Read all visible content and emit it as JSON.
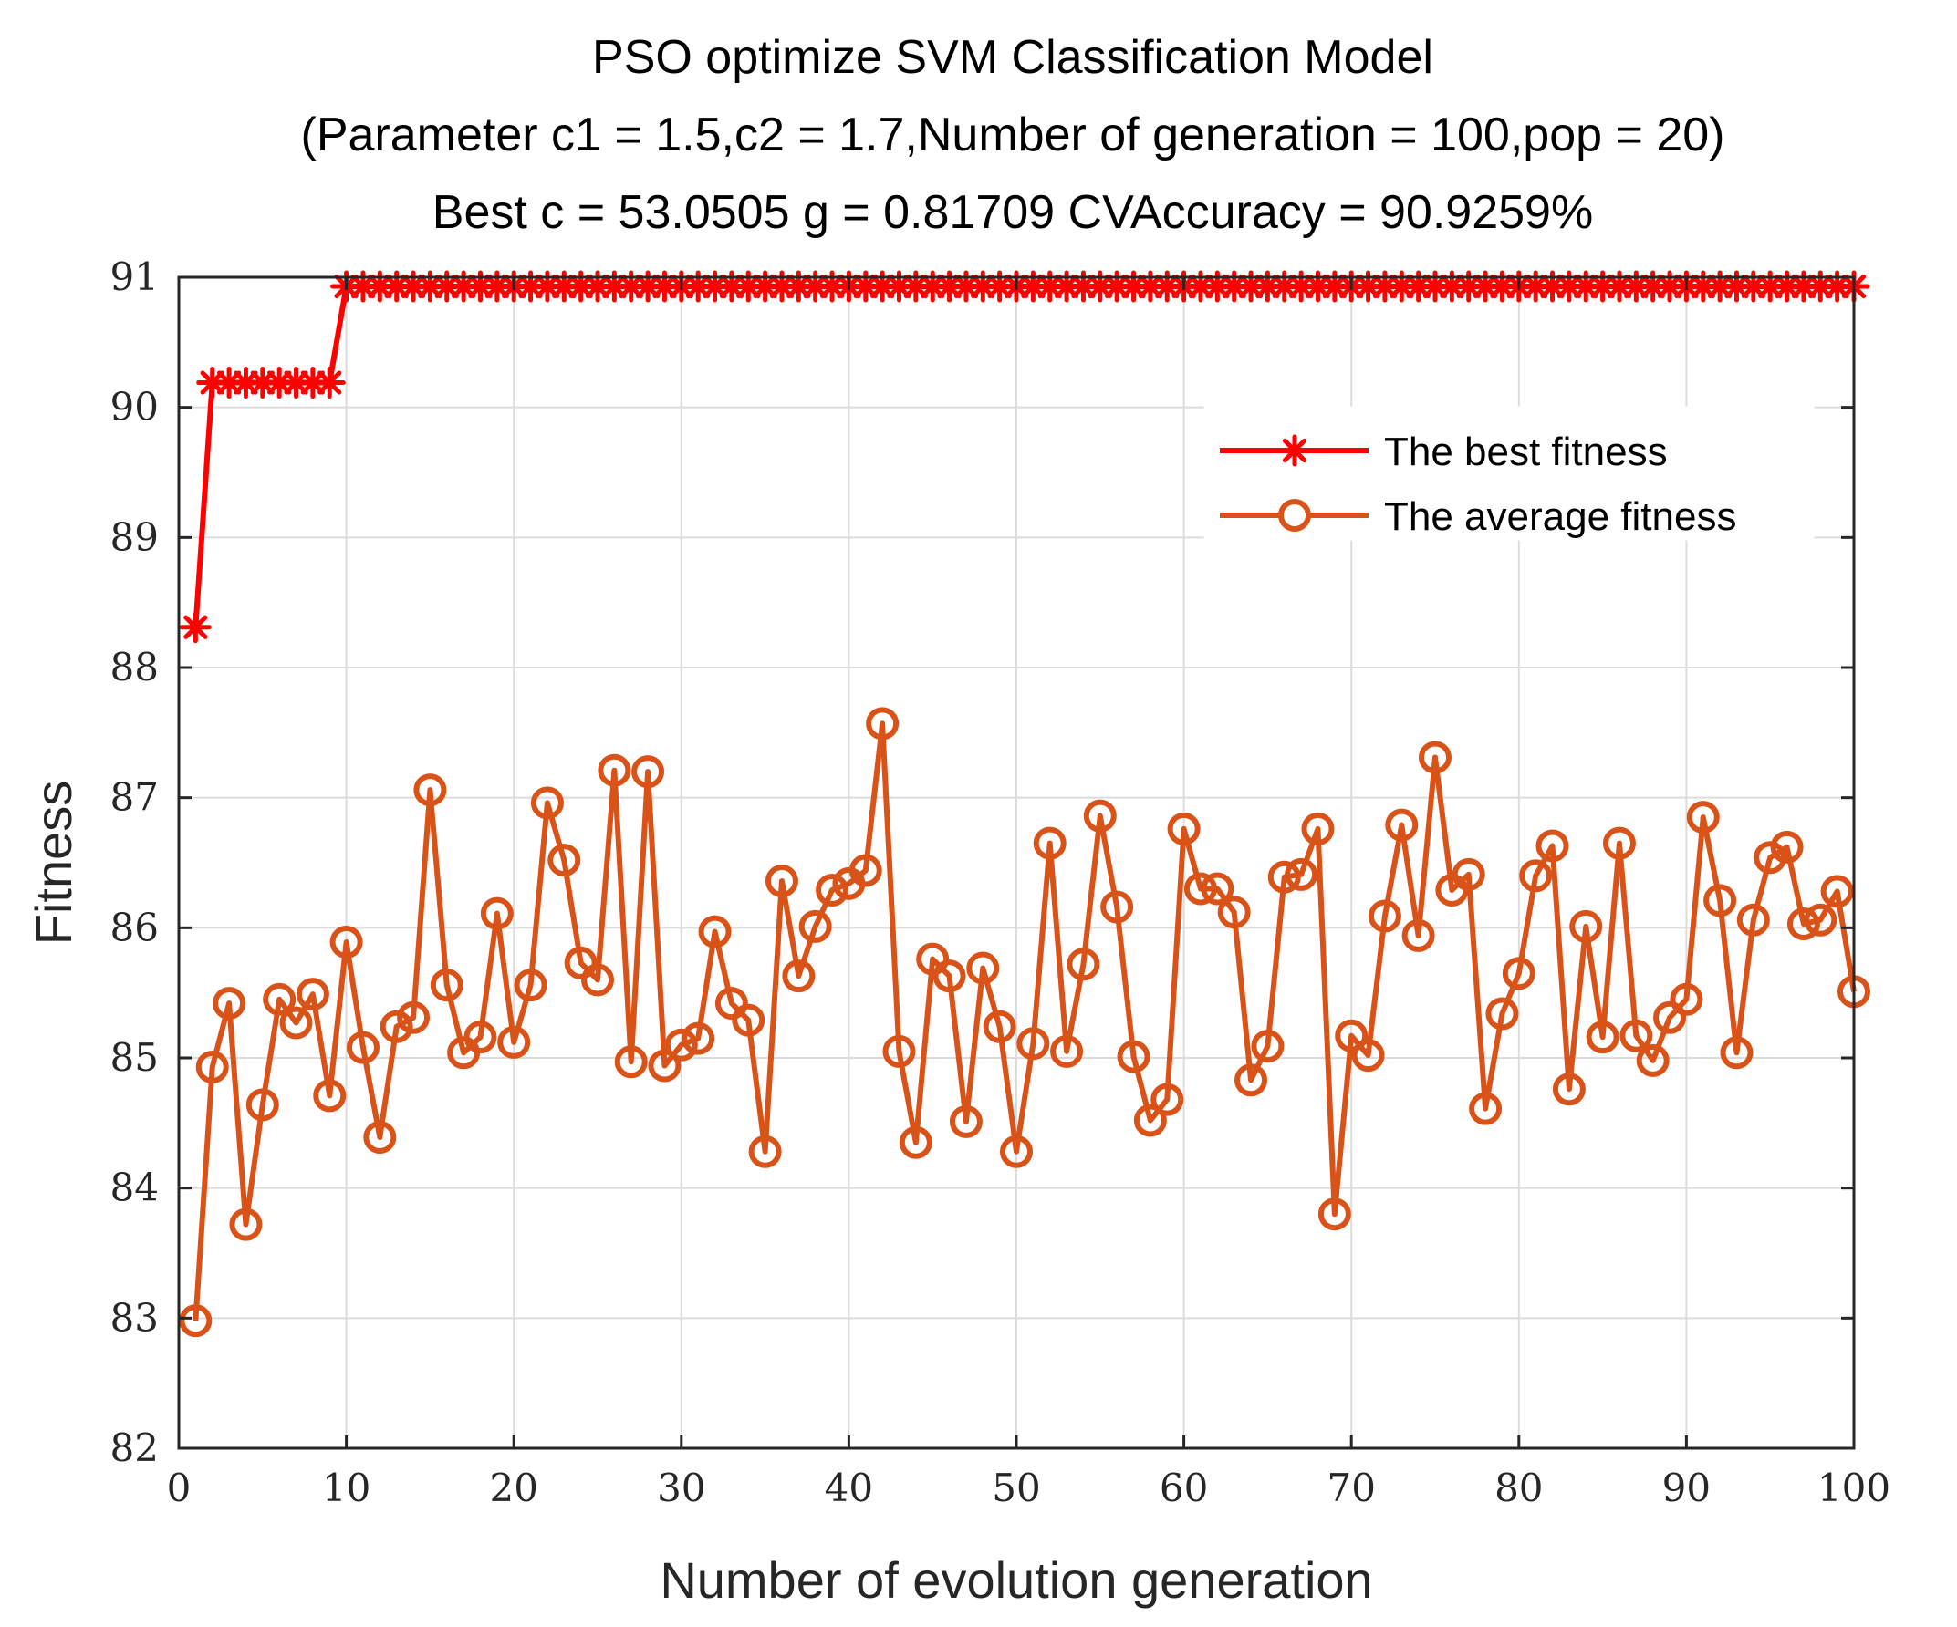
{
  "chart_data": {
    "type": "line",
    "title": [
      "PSO optimize SVM Classification Model",
      "(Parameter c1 = 1.5,c2 = 1.7,Number of generation = 100,pop = 20)",
      "Best c = 53.0505 g = 0.81709 CVAccuracy = 90.9259%"
    ],
    "xlabel": "Number of evolution generation",
    "ylabel": "Fitness",
    "xlim": [
      0,
      100
    ],
    "ylim": [
      82,
      91
    ],
    "xticks": [
      0,
      10,
      20,
      30,
      40,
      50,
      60,
      70,
      80,
      90,
      100
    ],
    "yticks": [
      82,
      83,
      84,
      85,
      86,
      87,
      88,
      89,
      90,
      91
    ],
    "grid": true,
    "legend_position": "upper-right",
    "x": [
      1,
      2,
      3,
      4,
      5,
      6,
      7,
      8,
      9,
      10,
      11,
      12,
      13,
      14,
      15,
      16,
      17,
      18,
      19,
      20,
      21,
      22,
      23,
      24,
      25,
      26,
      27,
      28,
      29,
      30,
      31,
      32,
      33,
      34,
      35,
      36,
      37,
      38,
      39,
      40,
      41,
      42,
      43,
      44,
      45,
      46,
      47,
      48,
      49,
      50,
      51,
      52,
      53,
      54,
      55,
      56,
      57,
      58,
      59,
      60,
      61,
      62,
      63,
      64,
      65,
      66,
      67,
      68,
      69,
      70,
      71,
      72,
      73,
      74,
      75,
      76,
      77,
      78,
      79,
      80,
      81,
      82,
      83,
      84,
      85,
      86,
      87,
      88,
      89,
      90,
      91,
      92,
      93,
      94,
      95,
      96,
      97,
      98,
      99,
      100
    ],
    "series": [
      {
        "name": "The best fitness",
        "color": "#ff0000",
        "marker": "asterisk",
        "values": [
          88.31,
          90.19,
          90.19,
          90.19,
          90.19,
          90.19,
          90.19,
          90.19,
          90.19,
          90.93,
          90.93,
          90.93,
          90.93,
          90.93,
          90.93,
          90.93,
          90.93,
          90.93,
          90.93,
          90.93,
          90.93,
          90.93,
          90.93,
          90.93,
          90.93,
          90.93,
          90.93,
          90.93,
          90.93,
          90.93,
          90.93,
          90.93,
          90.93,
          90.93,
          90.93,
          90.93,
          90.93,
          90.93,
          90.93,
          90.93,
          90.93,
          90.93,
          90.93,
          90.93,
          90.93,
          90.93,
          90.93,
          90.93,
          90.93,
          90.93,
          90.93,
          90.93,
          90.93,
          90.93,
          90.93,
          90.93,
          90.93,
          90.93,
          90.93,
          90.93,
          90.93,
          90.93,
          90.93,
          90.93,
          90.93,
          90.93,
          90.93,
          90.93,
          90.93,
          90.93,
          90.93,
          90.93,
          90.93,
          90.93,
          90.93,
          90.93,
          90.93,
          90.93,
          90.93,
          90.93,
          90.93,
          90.93,
          90.93,
          90.93,
          90.93,
          90.93,
          90.93,
          90.93,
          90.93,
          90.93,
          90.93,
          90.93,
          90.93,
          90.93,
          90.93,
          90.93,
          90.93,
          90.93,
          90.93,
          90.93
        ]
      },
      {
        "name": "The average fitness",
        "color": "#d95319",
        "marker": "circle",
        "values": [
          82.98,
          84.93,
          85.42,
          83.72,
          84.64,
          85.45,
          85.27,
          85.49,
          84.71,
          85.89,
          85.08,
          84.39,
          85.24,
          85.31,
          87.06,
          85.56,
          85.04,
          85.16,
          86.11,
          85.12,
          85.56,
          86.96,
          86.52,
          85.73,
          85.6,
          87.21,
          84.97,
          87.2,
          84.94,
          85.1,
          85.15,
          85.97,
          85.42,
          85.29,
          84.28,
          86.36,
          85.63,
          86.01,
          86.29,
          86.34,
          86.44,
          87.57,
          85.05,
          84.35,
          85.76,
          85.63,
          84.51,
          85.69,
          85.24,
          84.28,
          85.11,
          86.65,
          85.05,
          85.72,
          86.86,
          86.16,
          85.01,
          84.52,
          84.68,
          86.76,
          86.3,
          86.3,
          86.12,
          84.83,
          85.09,
          86.39,
          86.41,
          86.76,
          83.8,
          85.17,
          85.02,
          86.09,
          86.79,
          85.94,
          87.31,
          86.29,
          86.41,
          84.61,
          85.34,
          85.65,
          86.4,
          86.63,
          84.76,
          86.01,
          85.16,
          86.65,
          85.17,
          84.98,
          85.31,
          85.45,
          86.85,
          86.21,
          85.04,
          86.06,
          86.54,
          86.62,
          86.03,
          86.06,
          86.28,
          85.51
        ]
      }
    ]
  }
}
